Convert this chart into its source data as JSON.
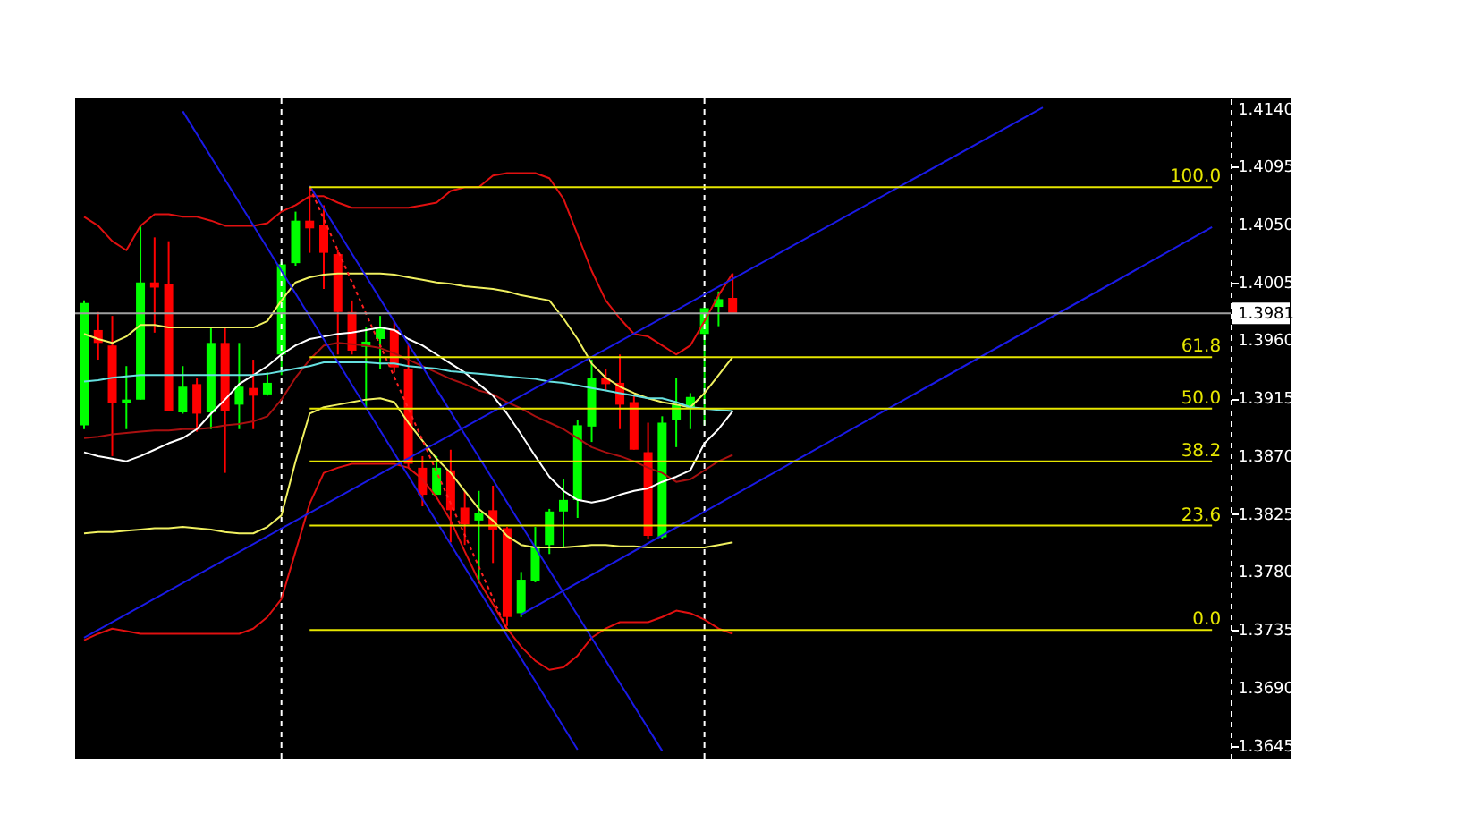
{
  "chart_data": {
    "type": "candlestick",
    "categories": [
      null,
      null,
      null,
      null,
      null,
      null,
      null,
      null,
      null,
      null,
      null,
      null,
      null,
      null,
      null,
      null,
      null,
      null,
      null,
      null,
      null,
      null,
      null,
      null,
      null,
      null,
      null,
      null,
      null,
      null,
      null,
      null,
      null,
      null,
      null,
      null,
      null,
      null,
      null,
      null,
      null,
      null,
      null,
      null,
      null,
      null,
      null,
      null,
      null,
      null,
      null,
      null,
      null,
      null,
      null,
      null,
      null,
      null,
      null,
      null,
      null,
      null,
      null,
      null,
      null,
      null,
      null,
      null,
      null,
      null,
      null,
      null,
      null,
      null,
      null,
      null,
      null,
      null,
      null,
      null,
      null
    ],
    "ohlc": [
      [
        1.3894,
        1.3991,
        1.3891,
        1.3989
      ],
      [
        1.3968,
        1.3982,
        1.3945,
        1.3958
      ],
      [
        1.3956,
        1.3979,
        1.387,
        1.3911
      ],
      [
        1.3911,
        1.394,
        1.3891,
        1.3914
      ],
      [
        1.3914,
        1.4049,
        1.3914,
        1.4005
      ],
      [
        1.4005,
        1.404,
        1.3966,
        1.4001
      ],
      [
        1.4004,
        1.4037,
        1.3905,
        1.3905
      ],
      [
        1.3904,
        1.394,
        1.3903,
        1.3924
      ],
      [
        1.3926,
        1.3931,
        1.3889,
        1.3903
      ],
      [
        1.3904,
        1.397,
        1.3891,
        1.3958
      ],
      [
        1.3958,
        1.397,
        1.3857,
        1.3905
      ],
      [
        1.391,
        1.3958,
        1.3891,
        1.3924
      ],
      [
        1.3923,
        1.3945,
        1.3891,
        1.3917
      ],
      [
        1.3918,
        1.3935,
        1.3917,
        1.3927
      ],
      [
        1.3949,
        1.4021,
        1.3933,
        1.4019
      ],
      [
        1.402,
        1.406,
        1.4018,
        1.4053
      ],
      [
        1.4053,
        1.4079,
        1.4028,
        1.4047
      ],
      [
        1.405,
        1.4065,
        1.4,
        1.4028
      ],
      [
        1.4027,
        1.403,
        1.3949,
        1.3982
      ],
      [
        1.3982,
        1.3991,
        1.3949,
        1.3952
      ],
      [
        1.3955,
        1.397,
        1.3908,
        1.3959
      ],
      [
        1.3961,
        1.3979,
        1.3938,
        1.397
      ],
      [
        1.3968,
        1.3975,
        1.3935,
        1.3939
      ],
      [
        1.3938,
        1.3958,
        1.3861,
        1.3864
      ],
      [
        1.3861,
        1.387,
        1.3831,
        1.384
      ],
      [
        1.384,
        1.387,
        1.384,
        1.3861
      ],
      [
        1.3859,
        1.3875,
        1.3803,
        1.3828
      ],
      [
        1.383,
        1.3843,
        1.3801,
        1.3817
      ],
      [
        1.382,
        1.3843,
        1.3771,
        1.3826
      ],
      [
        1.3828,
        1.3847,
        1.3787,
        1.3813
      ],
      [
        1.3814,
        1.3815,
        1.3738,
        1.3745
      ],
      [
        1.3748,
        1.378,
        1.3745,
        1.3774
      ],
      [
        1.3773,
        1.3815,
        1.3772,
        1.38
      ],
      [
        1.3801,
        1.3829,
        1.3794,
        1.3827
      ],
      [
        1.3827,
        1.3852,
        1.3799,
        1.3836
      ],
      [
        1.3836,
        1.3898,
        1.3822,
        1.3894
      ],
      [
        1.3893,
        1.3945,
        1.3881,
        1.3931
      ],
      [
        1.3931,
        1.3938,
        1.3921,
        1.3926
      ],
      [
        1.3927,
        1.3949,
        1.3891,
        1.391
      ],
      [
        1.3912,
        1.3917,
        1.3875,
        1.3875
      ],
      [
        1.3873,
        1.3896,
        1.3806,
        1.3808
      ],
      [
        1.3807,
        1.3901,
        1.3806,
        1.3896
      ],
      [
        1.3898,
        1.3931,
        1.3877,
        1.391
      ],
      [
        1.3907,
        1.3919,
        1.3891,
        1.3916
      ],
      [
        1.3965,
        1.3986,
        1.3894,
        1.3985
      ],
      [
        1.3986,
        1.3998,
        1.3971,
        1.3992
      ],
      [
        1.3993,
        1.4012,
        1.3981,
        1.3981
      ],
      null,
      null,
      null,
      null,
      null,
      null,
      null,
      null,
      null,
      null,
      null,
      null,
      null,
      null,
      null,
      null,
      null,
      null,
      null,
      null,
      null,
      null,
      null,
      null,
      null,
      null,
      null,
      null,
      null,
      null,
      null,
      null,
      null,
      null
    ],
    "colors": [
      "#00ff00",
      "#ff0000",
      "#ff0000",
      "#00ff00",
      "#00ff00",
      "#ff0000",
      "#ff0000",
      "#00ff00",
      "#ff0000",
      "#00ff00",
      "#ff0000",
      "#00ff00",
      "#ff0000",
      "#00ff00",
      "#00ff00",
      "#00ff00",
      "#ff0000",
      "#ff0000",
      "#ff0000",
      "#ff0000",
      "#00ff00",
      "#00ff00",
      "#ff0000",
      "#ff0000",
      "#ff0000",
      "#00ff00",
      "#ff0000",
      "#ff0000",
      "#00ff00",
      "#ff0000",
      "#ff0000",
      "#00ff00",
      "#00ff00",
      "#00ff00",
      "#00ff00",
      "#00ff00",
      "#00ff00",
      "#ff0000",
      "#ff0000",
      "#ff0000",
      "#ff0000",
      "#00ff00",
      "#00ff00",
      "#00ff00",
      "#00ff00",
      "#00ff00",
      "#ff0000",
      null,
      null,
      null,
      null,
      null,
      null,
      null,
      null,
      null,
      null,
      null,
      null,
      null,
      null,
      null,
      null,
      null,
      null,
      null,
      null,
      null,
      null,
      null,
      null,
      null,
      null,
      null,
      null,
      null,
      null,
      null,
      null,
      null,
      null
    ],
    "series": [
      {
        "type": "line",
        "color": "#e01010",
        "values": [
          1.4056,
          1.4049,
          1.4037,
          1.403,
          1.4049,
          1.4058,
          1.4058,
          1.4056,
          1.4056,
          1.4053,
          1.4049,
          1.4049,
          1.4049,
          1.4051,
          1.406,
          1.4065,
          1.4072,
          1.4072,
          1.4067,
          1.4063,
          1.4063,
          1.4063,
          1.4063,
          1.4063,
          1.4065,
          1.4067,
          1.4076,
          1.4079,
          1.4079,
          1.4088,
          1.409,
          1.409,
          1.409,
          1.4086,
          1.407,
          1.4042,
          1.4014,
          1.3991,
          1.3977,
          1.3965,
          1.3963,
          1.3956,
          1.3949,
          1.3956,
          1.3975,
          1.3995,
          1.4012,
          null,
          null,
          null,
          null,
          null,
          null,
          null,
          null,
          null,
          null,
          null,
          null,
          null,
          null,
          null,
          null,
          null,
          null,
          null,
          null,
          null,
          null,
          null,
          null,
          null,
          null,
          null,
          null,
          null,
          null,
          null,
          null,
          null,
          null
        ]
      },
      {
        "type": "line",
        "color": "#e01010",
        "values": [
          1.3727,
          1.3732,
          1.3736,
          1.3734,
          1.3732,
          1.3732,
          1.3732,
          1.3732,
          1.3732,
          1.3732,
          1.3732,
          1.3732,
          1.3736,
          1.3745,
          1.3759,
          1.3796,
          1.3833,
          1.3857,
          1.3861,
          1.3864,
          1.3864,
          1.3864,
          1.3864,
          1.3861,
          1.3852,
          1.3838,
          1.382,
          1.3796,
          1.3773,
          1.3755,
          1.3736,
          1.3722,
          1.3711,
          1.3704,
          1.3706,
          1.3715,
          1.3729,
          1.3736,
          1.3741,
          1.3741,
          1.3741,
          1.3745,
          1.375,
          1.3748,
          1.3743,
          1.3736,
          1.3732,
          null,
          null,
          null,
          null,
          null,
          null,
          null,
          null,
          null,
          null,
          null,
          null,
          null,
          null,
          null,
          null,
          null,
          null,
          null,
          null,
          null,
          null,
          null,
          null,
          null,
          null,
          null,
          null,
          null,
          null,
          null,
          null,
          null,
          null
        ]
      },
      {
        "type": "line",
        "color": "#a81010",
        "values": [
          1.3884,
          1.3885,
          1.3887,
          1.3888,
          1.3889,
          1.389,
          1.389,
          1.3891,
          1.3891,
          1.3892,
          1.3894,
          1.3895,
          1.3897,
          1.3901,
          1.3914,
          1.3931,
          1.3945,
          1.3956,
          1.3958,
          1.3957,
          1.3956,
          1.3954,
          1.395,
          1.3945,
          1.394,
          1.3935,
          1.393,
          1.3926,
          1.3921,
          1.3918,
          1.3912,
          1.3907,
          1.3901,
          1.3896,
          1.3891,
          1.3884,
          1.3877,
          1.3873,
          1.387,
          1.3866,
          1.3861,
          1.3857,
          1.385,
          1.3852,
          1.3859,
          1.3866,
          1.3871,
          null,
          null,
          null,
          null,
          null,
          null,
          null,
          null,
          null,
          null,
          null,
          null,
          null,
          null,
          null,
          null,
          null,
          null,
          null,
          null,
          null,
          null,
          null,
          null,
          null,
          null,
          null,
          null,
          null,
          null,
          null,
          null,
          null,
          null
        ]
      },
      {
        "type": "line",
        "color": "#f0f060",
        "values": [
          1.3965,
          1.3961,
          1.3958,
          1.3963,
          1.3972,
          1.3972,
          1.397,
          1.397,
          1.397,
          1.397,
          1.397,
          1.397,
          1.397,
          1.3975,
          1.3991,
          1.4005,
          1.4009,
          1.4011,
          1.4012,
          1.4012,
          1.4012,
          1.4012,
          1.4011,
          1.4009,
          1.4007,
          1.4005,
          1.4004,
          1.4002,
          1.4001,
          1.4,
          1.3998,
          1.3995,
          1.3993,
          1.3991,
          1.3977,
          1.3961,
          1.3942,
          1.3931,
          1.3924,
          1.3919,
          1.3915,
          1.3912,
          1.391,
          1.3908,
          1.3919,
          1.3933,
          1.3947,
          null,
          null,
          null,
          null,
          null,
          null,
          null,
          null,
          null,
          null,
          null,
          null,
          null,
          null,
          null,
          null,
          null,
          null,
          null,
          null,
          null,
          null,
          null,
          null,
          null,
          null,
          null,
          null,
          null,
          null,
          null,
          null,
          null,
          null
        ]
      },
      {
        "type": "line",
        "color": "#f0f060",
        "values": [
          1.381,
          1.3811,
          1.3811,
          1.3812,
          1.3813,
          1.3814,
          1.3814,
          1.3815,
          1.3814,
          1.3813,
          1.3811,
          1.381,
          1.381,
          1.3815,
          1.3824,
          1.3866,
          1.3903,
          1.3908,
          1.391,
          1.3912,
          1.3914,
          1.3915,
          1.3912,
          1.3896,
          1.3882,
          1.3868,
          1.3857,
          1.3843,
          1.3829,
          1.382,
          1.3808,
          1.3801,
          1.3799,
          1.3799,
          1.3799,
          1.38,
          1.3801,
          1.3801,
          1.38,
          1.38,
          1.3799,
          1.3799,
          1.3799,
          1.3799,
          1.3799,
          1.3801,
          1.3803,
          null,
          null,
          null,
          null,
          null,
          null,
          null,
          null,
          null,
          null,
          null,
          null,
          null,
          null,
          null,
          null,
          null,
          null,
          null,
          null,
          null,
          null,
          null,
          null,
          null,
          null,
          null,
          null,
          null,
          null,
          null,
          null,
          null,
          null
        ]
      },
      {
        "type": "line",
        "color": "#ffffff",
        "values": [
          1.3873,
          1.387,
          1.3868,
          1.3866,
          1.387,
          1.3875,
          1.388,
          1.3884,
          1.3891,
          1.3903,
          1.3914,
          1.3926,
          1.3933,
          1.394,
          1.3949,
          1.3956,
          1.3961,
          1.3963,
          1.3965,
          1.3966,
          1.3968,
          1.397,
          1.3968,
          1.3961,
          1.3956,
          1.3949,
          1.3942,
          1.3935,
          1.3926,
          1.3917,
          1.3903,
          1.3887,
          1.387,
          1.3854,
          1.3843,
          1.3836,
          1.3834,
          1.3836,
          1.384,
          1.3843,
          1.3845,
          1.385,
          1.3854,
          1.3859,
          1.388,
          1.3891,
          1.3905,
          null,
          null,
          null,
          null,
          null,
          null,
          null,
          null,
          null,
          null,
          null,
          null,
          null,
          null,
          null,
          null,
          null,
          null,
          null,
          null,
          null,
          null,
          null,
          null,
          null,
          null,
          null,
          null,
          null,
          null,
          null,
          null,
          null,
          null
        ]
      },
      {
        "type": "line",
        "color": "#66e0e0",
        "values": [
          1.3928,
          1.3929,
          1.3931,
          1.3932,
          1.3933,
          1.3933,
          1.3933,
          1.3933,
          1.3933,
          1.3933,
          1.3933,
          1.3933,
          1.3933,
          1.3934,
          1.3936,
          1.3938,
          1.394,
          1.3943,
          1.3943,
          1.3943,
          1.3943,
          1.3942,
          1.3942,
          1.394,
          1.3939,
          1.3938,
          1.3936,
          1.3935,
          1.3934,
          1.3933,
          1.3932,
          1.3931,
          1.393,
          1.3928,
          1.3927,
          1.3925,
          1.3923,
          1.3921,
          1.3919,
          1.3917,
          1.3915,
          1.3915,
          1.3912,
          1.3908,
          1.3907,
          1.3906,
          1.3905,
          null,
          null,
          null,
          null,
          null,
          null,
          null,
          null,
          null,
          null,
          null,
          null,
          null,
          null,
          null,
          null,
          null,
          null,
          null,
          null,
          null,
          null,
          null,
          null,
          null,
          null,
          null,
          null,
          null,
          null,
          null,
          null,
          null,
          null
        ]
      },
      {
        "type": "line",
        "color": "#1a1ae6",
        "values": [
          null,
          null,
          null,
          null,
          null,
          null,
          null,
          1.4138,
          null,
          null,
          null,
          null,
          null,
          null,
          null,
          null,
          null,
          null,
          null,
          null,
          null,
          null,
          null,
          null,
          null,
          null,
          null,
          null,
          null,
          null,
          null,
          null,
          null,
          null,
          null,
          1.3642,
          null,
          null,
          null,
          null,
          null,
          null,
          null,
          null,
          null,
          null,
          null,
          null,
          null,
          null,
          null,
          null,
          null,
          null,
          null,
          null,
          null,
          null,
          null,
          null,
          null,
          null,
          null,
          null,
          null,
          null,
          null,
          null,
          null,
          null,
          null,
          null,
          null,
          null,
          null,
          null,
          null,
          null,
          null,
          null,
          null
        ]
      },
      {
        "type": "line",
        "color": "#1a1ae6",
        "values": [
          null,
          null,
          null,
          null,
          null,
          null,
          null,
          null,
          null,
          null,
          null,
          null,
          null,
          null,
          null,
          null,
          1.408,
          null,
          null,
          null,
          null,
          null,
          null,
          null,
          null,
          null,
          null,
          null,
          null,
          null,
          null,
          null,
          null,
          null,
          null,
          null,
          null,
          null,
          null,
          null,
          null,
          1.3641,
          null,
          null,
          null,
          null,
          null,
          null,
          null,
          null,
          null,
          null,
          null,
          null,
          null,
          null,
          null,
          null,
          null,
          null,
          null,
          null,
          null,
          null,
          null,
          null,
          null,
          null,
          null,
          null,
          null,
          null,
          null,
          null,
          null,
          null,
          null,
          null,
          null,
          null,
          null
        ]
      },
      {
        "type": "line",
        "color": "#1a1ae6",
        "values": [
          1.3729,
          null,
          null,
          null,
          null,
          null,
          null,
          null,
          null,
          null,
          null,
          null,
          null,
          null,
          null,
          null,
          null,
          null,
          null,
          null,
          null,
          null,
          null,
          null,
          null,
          null,
          null,
          null,
          null,
          null,
          null,
          null,
          null,
          null,
          null,
          null,
          null,
          null,
          null,
          null,
          null,
          null,
          null,
          null,
          null,
          null,
          null,
          null,
          null,
          null,
          null,
          null,
          null,
          null,
          null,
          null,
          null,
          null,
          null,
          null,
          null,
          null,
          null,
          null,
          null,
          null,
          null,
          null,
          1.4141,
          null,
          null,
          null,
          null,
          null,
          null,
          null,
          null,
          null,
          null,
          null,
          null
        ]
      },
      {
        "type": "line",
        "color": "#1a1ae6",
        "values": [
          null,
          null,
          null,
          null,
          null,
          null,
          null,
          null,
          null,
          null,
          null,
          null,
          null,
          null,
          null,
          null,
          null,
          null,
          null,
          null,
          null,
          null,
          null,
          null,
          null,
          null,
          null,
          null,
          null,
          null,
          null,
          1.3747,
          null,
          null,
          null,
          null,
          null,
          null,
          null,
          null,
          null,
          null,
          null,
          null,
          null,
          null,
          null,
          null,
          null,
          null,
          null,
          null,
          null,
          null,
          null,
          null,
          null,
          null,
          null,
          null,
          null,
          null,
          null,
          null,
          null,
          null,
          null,
          null,
          null,
          null,
          null,
          null,
          null,
          null,
          null,
          null,
          null,
          null,
          null,
          null,
          1.4048
        ]
      },
      {
        "type": "line",
        "color": "#ff2020",
        "line_style": "dotted",
        "values": [
          null,
          null,
          null,
          null,
          null,
          null,
          null,
          null,
          null,
          null,
          null,
          null,
          null,
          null,
          null,
          null,
          1.4079,
          null,
          null,
          null,
          null,
          null,
          null,
          null,
          null,
          null,
          null,
          null,
          null,
          null,
          1.3735,
          null,
          null,
          null,
          null,
          null,
          null,
          null,
          null,
          null,
          null,
          null,
          null,
          null,
          null,
          null,
          null,
          null,
          null,
          null,
          null,
          null,
          null,
          null,
          null,
          null,
          null,
          null,
          null,
          null,
          null,
          null,
          null,
          null,
          null,
          null,
          null,
          null,
          null,
          null,
          null,
          null,
          null,
          null,
          null,
          null,
          null,
          null,
          null,
          null,
          null
        ]
      },
      {
        "type": "line",
        "name": "100.0",
        "color": "#e6e600",
        "values": [
          null,
          null,
          null,
          null,
          null,
          null,
          null,
          null,
          null,
          null,
          null,
          null,
          null,
          null,
          null,
          null,
          1.4079,
          null,
          null,
          null,
          null,
          null,
          null,
          null,
          null,
          null,
          null,
          null,
          null,
          null,
          null,
          null,
          null,
          null,
          null,
          null,
          null,
          null,
          null,
          null,
          null,
          null,
          null,
          null,
          null,
          null,
          null,
          null,
          null,
          null,
          null,
          null,
          null,
          null,
          null,
          null,
          null,
          null,
          null,
          null,
          null,
          null,
          null,
          null,
          null,
          null,
          null,
          null,
          null,
          null,
          null,
          null,
          null,
          null,
          null,
          null,
          null,
          null,
          null,
          null,
          1.4079
        ]
      },
      {
        "type": "line",
        "name": "61.8",
        "color": "#e6e600",
        "values": [
          null,
          null,
          null,
          null,
          null,
          null,
          null,
          null,
          null,
          null,
          null,
          null,
          null,
          null,
          null,
          null,
          1.3947,
          null,
          null,
          null,
          null,
          null,
          null,
          null,
          null,
          null,
          null,
          null,
          null,
          null,
          null,
          null,
          null,
          null,
          null,
          null,
          null,
          null,
          null,
          null,
          null,
          null,
          null,
          null,
          null,
          null,
          null,
          null,
          null,
          null,
          null,
          null,
          null,
          null,
          null,
          null,
          null,
          null,
          null,
          null,
          null,
          null,
          null,
          null,
          null,
          null,
          null,
          null,
          null,
          null,
          null,
          null,
          null,
          null,
          null,
          null,
          null,
          null,
          null,
          null,
          1.3947
        ]
      },
      {
        "type": "line",
        "name": "50.0",
        "color": "#e6e600",
        "values": [
          null,
          null,
          null,
          null,
          null,
          null,
          null,
          null,
          null,
          null,
          null,
          null,
          null,
          null,
          null,
          null,
          1.3907,
          null,
          null,
          null,
          null,
          null,
          null,
          null,
          null,
          null,
          null,
          null,
          null,
          null,
          null,
          null,
          null,
          null,
          null,
          null,
          null,
          null,
          null,
          null,
          null,
          null,
          null,
          null,
          null,
          null,
          null,
          null,
          null,
          null,
          null,
          null,
          null,
          null,
          null,
          null,
          null,
          null,
          null,
          null,
          null,
          null,
          null,
          null,
          null,
          null,
          null,
          null,
          null,
          null,
          null,
          null,
          null,
          null,
          null,
          null,
          null,
          null,
          null,
          null,
          1.3907
        ]
      },
      {
        "type": "line",
        "name": "38.2",
        "color": "#e6e600",
        "values": [
          null,
          null,
          null,
          null,
          null,
          null,
          null,
          null,
          null,
          null,
          null,
          null,
          null,
          null,
          null,
          null,
          1.3866,
          null,
          null,
          null,
          null,
          null,
          null,
          null,
          null,
          null,
          null,
          null,
          null,
          null,
          null,
          null,
          null,
          null,
          null,
          null,
          null,
          null,
          null,
          null,
          null,
          null,
          null,
          null,
          null,
          null,
          null,
          null,
          null,
          null,
          null,
          null,
          null,
          null,
          null,
          null,
          null,
          null,
          null,
          null,
          null,
          null,
          null,
          null,
          null,
          null,
          null,
          null,
          null,
          null,
          null,
          null,
          null,
          null,
          null,
          null,
          null,
          null,
          null,
          null,
          1.3866
        ]
      },
      {
        "type": "line",
        "name": "23.6",
        "color": "#e6e600",
        "values": [
          null,
          null,
          null,
          null,
          null,
          null,
          null,
          null,
          null,
          null,
          null,
          null,
          null,
          null,
          null,
          null,
          1.3816,
          null,
          null,
          null,
          null,
          null,
          null,
          null,
          null,
          null,
          null,
          null,
          null,
          null,
          null,
          null,
          null,
          null,
          null,
          null,
          null,
          null,
          null,
          null,
          null,
          null,
          null,
          null,
          null,
          null,
          null,
          null,
          null,
          null,
          null,
          null,
          null,
          null,
          null,
          null,
          null,
          null,
          null,
          null,
          null,
          null,
          null,
          null,
          null,
          null,
          null,
          null,
          null,
          null,
          null,
          null,
          null,
          null,
          null,
          null,
          null,
          null,
          null,
          null,
          1.3816
        ]
      },
      {
        "type": "line",
        "name": "0.0",
        "color": "#e6e600",
        "values": [
          null,
          null,
          null,
          null,
          null,
          null,
          null,
          null,
          null,
          null,
          null,
          null,
          null,
          null,
          null,
          null,
          1.3735,
          null,
          null,
          null,
          null,
          null,
          null,
          null,
          null,
          null,
          null,
          null,
          null,
          null,
          null,
          null,
          null,
          null,
          null,
          null,
          null,
          null,
          null,
          null,
          null,
          null,
          null,
          null,
          null,
          null,
          null,
          null,
          null,
          null,
          null,
          null,
          null,
          null,
          null,
          null,
          null,
          null,
          null,
          null,
          null,
          null,
          null,
          null,
          null,
          null,
          null,
          null,
          null,
          null,
          null,
          null,
          null,
          null,
          null,
          null,
          null,
          null,
          null,
          null,
          1.3735
        ]
      }
    ],
    "ref_lines": [
      {
        "axis": "y",
        "value": 1.3981,
        "label": "1.3981",
        "color": "#a0a0a0"
      }
    ],
    "ylim": [
      1.3635,
      1.4148
    ],
    "yticks": [
      {
        "value": 1.414,
        "label": "1.4140"
      },
      {
        "value": 1.4095,
        "label": "1.4095"
      },
      {
        "value": 1.405,
        "label": "1.4050"
      },
      {
        "value": 1.4005,
        "label": "1.4005"
      },
      {
        "value": 1.396,
        "label": "1.3960"
      },
      {
        "value": 1.3915,
        "label": "1.3915"
      },
      {
        "value": 1.387,
        "label": "1.3870"
      },
      {
        "value": 1.3825,
        "label": "1.3825"
      },
      {
        "value": 1.378,
        "label": "1.3780"
      },
      {
        "value": 1.3735,
        "label": "1.3735"
      },
      {
        "value": 1.369,
        "label": "1.3690"
      },
      {
        "value": 1.3645,
        "label": "1.3645"
      }
    ],
    "tick_labels": "y",
    "grid": false,
    "legend": false,
    "marker": "none"
  }
}
